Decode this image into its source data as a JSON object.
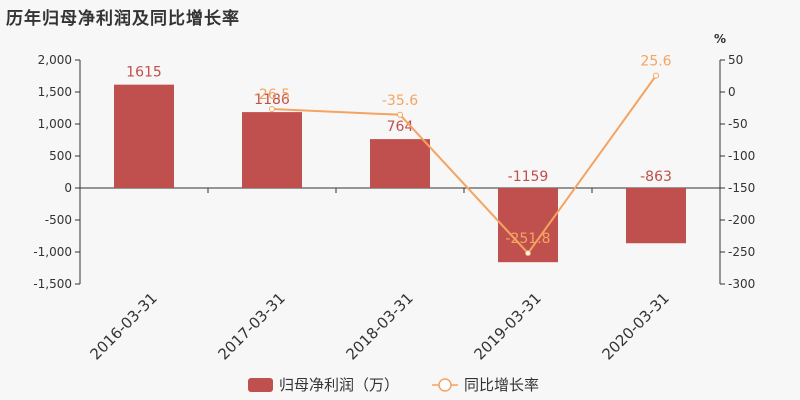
{
  "title": "历年归母净利润及同比增长率",
  "chart_data": {
    "type": "bar",
    "categories": [
      "2016-03-31",
      "2017-03-31",
      "2018-03-31",
      "2019-03-31",
      "2020-03-31"
    ],
    "series": [
      {
        "name": "归母净利润（万）",
        "type": "bar",
        "axis": "left",
        "values": [
          1615,
          1186,
          764,
          -1159,
          -863
        ],
        "labels": [
          "1615",
          "1186",
          "764",
          "-1159",
          "-863"
        ],
        "color": "#c0504d"
      },
      {
        "name": "同比增长率",
        "type": "line",
        "axis": "right",
        "values": [
          null,
          -26.5,
          -35.6,
          -251.8,
          25.6
        ],
        "labels": [
          "",
          "-26.5",
          "-35.6",
          "-251.8",
          "25.6"
        ],
        "color": "#f4a460"
      }
    ],
    "y_left": {
      "range": [
        -1500,
        2000
      ],
      "ticks": [
        2000,
        1500,
        1000,
        500,
        0,
        -500,
        -1000,
        -1500
      ],
      "tick_labels": [
        "2,000",
        "1,500",
        "1,000",
        "500",
        "0",
        "-500",
        "-1,000",
        "-1,500"
      ]
    },
    "y_right": {
      "label": "%",
      "range": [
        -300,
        50
      ],
      "ticks": [
        50,
        0,
        -50,
        -100,
        -150,
        -200,
        -250,
        -300
      ],
      "tick_labels": [
        "50",
        "0",
        "-50",
        "-100",
        "-150",
        "-200",
        "-250",
        "-300"
      ]
    },
    "grid": false,
    "legend": "bottom-center"
  }
}
